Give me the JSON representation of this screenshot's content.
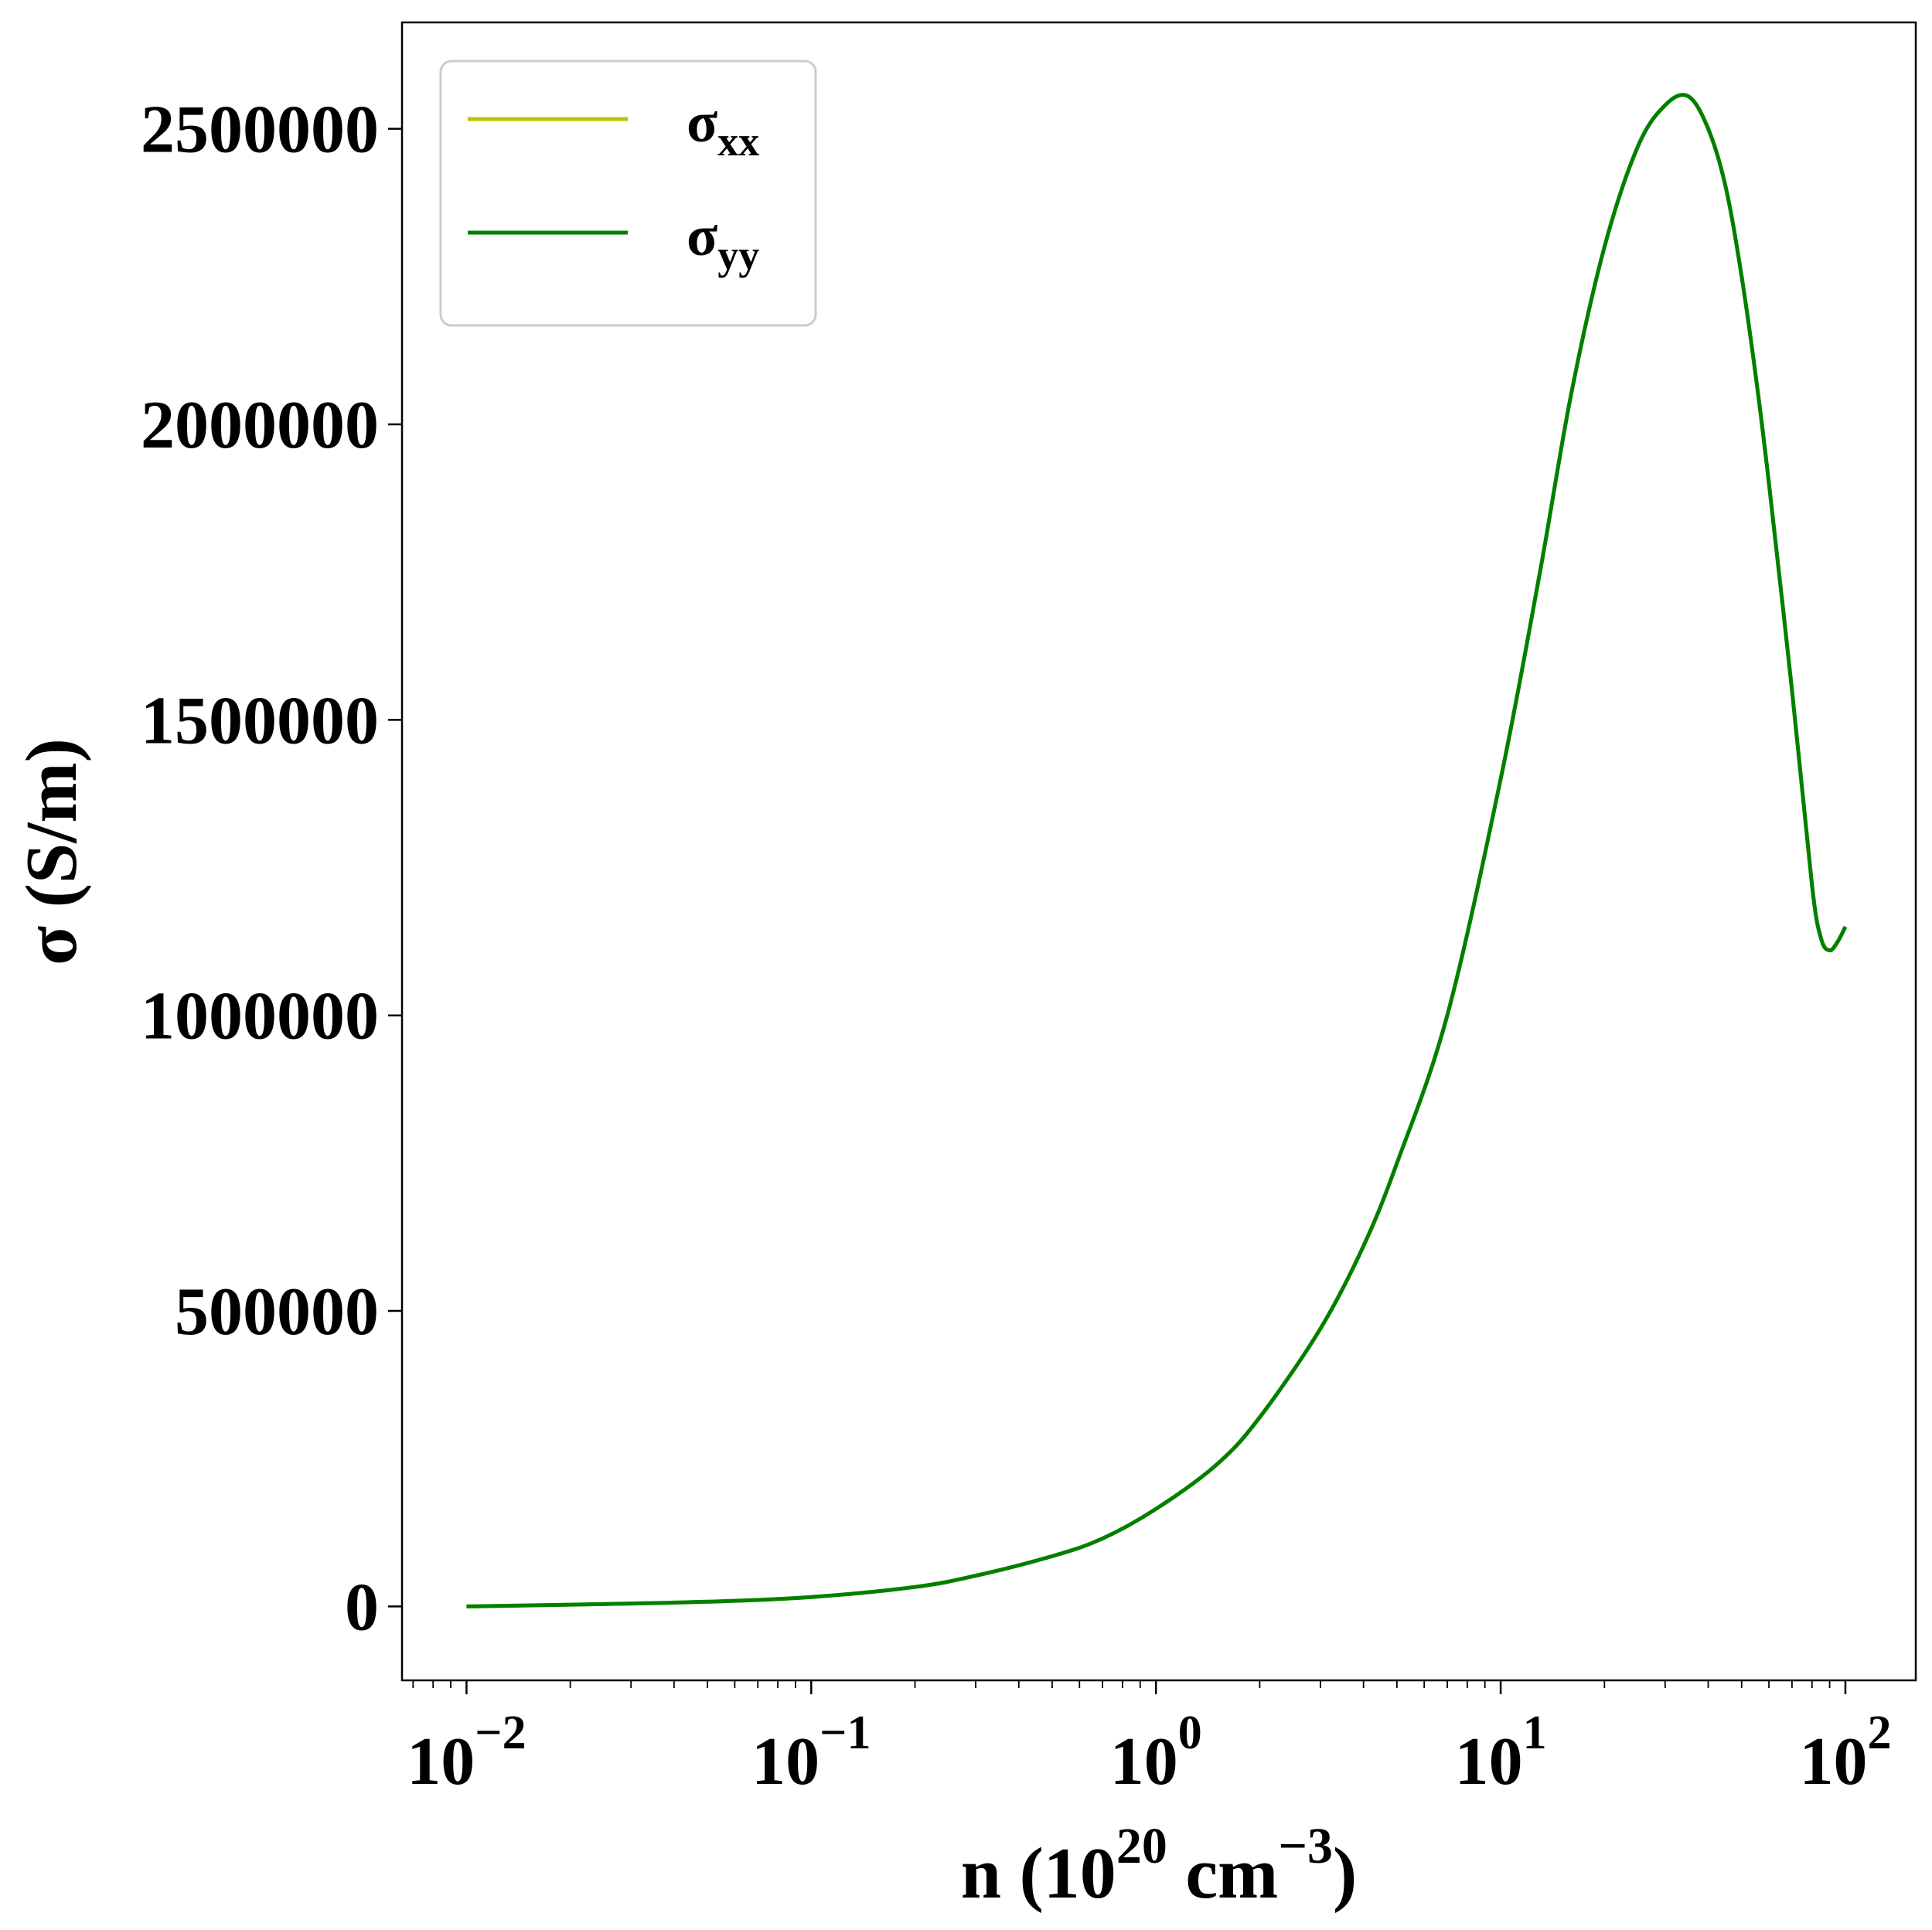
{
  "chart_data": {
    "type": "line",
    "title": "",
    "xlabel": {
      "base": "n (10",
      "sup1": "20",
      "mid": " cm",
      "sup2": "−3",
      "end": ")"
    },
    "ylabel": "σ (S/m)",
    "x_scale": "log",
    "xlim": [
      0.0065,
      160
    ],
    "ylim": [
      -125000,
      2680000
    ],
    "x_ticks": [
      {
        "value": 0.01,
        "base": "10",
        "exp": "−2"
      },
      {
        "value": 0.1,
        "base": "10",
        "exp": "−1"
      },
      {
        "value": 1,
        "base": "10",
        "exp": "0"
      },
      {
        "value": 10,
        "base": "10",
        "exp": "1"
      },
      {
        "value": 100,
        "base": "10",
        "exp": "2"
      }
    ],
    "y_ticks": [
      {
        "value": 0,
        "label": "0"
      },
      {
        "value": 500000,
        "label": "500000"
      },
      {
        "value": 1000000,
        "label": "1000000"
      },
      {
        "value": 1500000,
        "label": "1500000"
      },
      {
        "value": 2000000,
        "label": "2000000"
      },
      {
        "value": 2500000,
        "label": "2500000"
      }
    ],
    "grid": false,
    "legend_position": "top-left",
    "series": [
      {
        "name": "σxx",
        "label_main": "σ",
        "label_sub": "xx",
        "color": "#bfbf00",
        "x": [
          0.01,
          0.02,
          0.05,
          0.1,
          0.2,
          0.3,
          0.5,
          0.7,
          1.0,
          1.5,
          2.0,
          3.0,
          4.0,
          5.0,
          7.0,
          10,
          13,
          16,
          20,
          25,
          30,
          35,
          40,
          45,
          50,
          55,
          60,
          70,
          80,
          85,
          90,
          95,
          100
        ],
        "y": [
          0,
          3000,
          8000,
          16000,
          33000,
          52000,
          85000,
          115000,
          165000,
          240000,
          320000,
          470000,
          610000,
          750000,
          1000000,
          1400000,
          1750000,
          2050000,
          2300000,
          2470000,
          2540000,
          2555000,
          2500000,
          2400000,
          2250000,
          2080000,
          1900000,
          1550000,
          1220000,
          1130000,
          1110000,
          1125000,
          1150000
        ]
      },
      {
        "name": "σyy",
        "label_main": "σ",
        "label_sub": "yy",
        "color": "#008000",
        "x": [
          0.01,
          0.02,
          0.05,
          0.1,
          0.2,
          0.3,
          0.5,
          0.7,
          1.0,
          1.5,
          2.0,
          3.0,
          4.0,
          5.0,
          7.0,
          10,
          13,
          16,
          20,
          25,
          30,
          35,
          40,
          45,
          50,
          55,
          60,
          70,
          80,
          85,
          90,
          95,
          100
        ],
        "y": [
          0,
          3000,
          8000,
          16000,
          33000,
          52000,
          85000,
          115000,
          165000,
          240000,
          320000,
          470000,
          610000,
          750000,
          1000000,
          1400000,
          1750000,
          2050000,
          2300000,
          2470000,
          2540000,
          2555000,
          2500000,
          2400000,
          2250000,
          2080000,
          1900000,
          1550000,
          1220000,
          1130000,
          1110000,
          1125000,
          1150000
        ]
      }
    ]
  }
}
